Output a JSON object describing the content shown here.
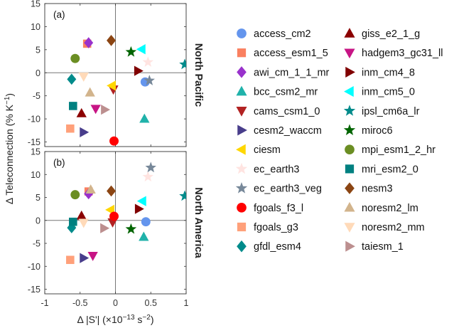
{
  "chart_data": {
    "type": "scatter",
    "xlabel_parts": [
      "Δ |S'| (×10",
      "−13",
      " s",
      "−2",
      ")"
    ],
    "ylabel_parts": [
      "Δ Teleconnection (% K",
      "−1",
      ")"
    ],
    "xlim": [
      -1,
      1
    ],
    "ylim": [
      -16,
      15
    ],
    "xticks": [
      -1,
      -0.5,
      0,
      0.5,
      1
    ],
    "xtick_labels": [
      "-1",
      "-0.5",
      "0",
      "0.5",
      "1"
    ],
    "yticks": [
      -15,
      -10,
      -5,
      0,
      5,
      10,
      15
    ],
    "ytick_labels": [
      "-15",
      "-10",
      "-5",
      "0",
      "5",
      "10",
      "15"
    ],
    "legend_position": "right",
    "panels": [
      {
        "label": "(a)",
        "region": "North Pacific",
        "points": [
          {
            "model": "access_cm2",
            "x": 0.42,
            "y": -2.0
          },
          {
            "model": "access_esm1_5",
            "x": -0.4,
            "y": 6.3
          },
          {
            "model": "awi_cm_1_1_mr",
            "x": -0.38,
            "y": 6.5
          },
          {
            "model": "bcc_csm2_mr",
            "x": 0.41,
            "y": -10.0
          },
          {
            "model": "cams_csm1_0",
            "x": -0.03,
            "y": -3.6
          },
          {
            "model": "cesm2_waccm",
            "x": -0.45,
            "y": -12.9
          },
          {
            "model": "ciesm",
            "x": -0.05,
            "y": -2.8
          },
          {
            "model": "ec_earth3",
            "x": 0.46,
            "y": 2.3
          },
          {
            "model": "ec_earth3_veg",
            "x": 0.48,
            "y": -1.7
          },
          {
            "model": "fgoals_f3_l",
            "x": -0.02,
            "y": -14.8
          },
          {
            "model": "fgoals_g3",
            "x": -0.64,
            "y": -12.1
          },
          {
            "model": "gfdl_esm4",
            "x": -0.62,
            "y": -1.4
          },
          {
            "model": "giss_e2_1_g",
            "x": -0.48,
            "y": -8.8
          },
          {
            "model": "hadgem3_gc31_ll",
            "x": -0.28,
            "y": -7.8
          },
          {
            "model": "inm_cm4_8",
            "x": 0.32,
            "y": 0.4
          },
          {
            "model": "inm_cm5_0",
            "x": 0.37,
            "y": 5.1
          },
          {
            "model": "ipsl_cm6a_lr",
            "x": 0.98,
            "y": 1.8
          },
          {
            "model": "miroc6",
            "x": 0.22,
            "y": 4.5
          },
          {
            "model": "mpi_esm1_2_hr",
            "x": -0.57,
            "y": 3.1
          },
          {
            "model": "mri_esm2_0",
            "x": -0.6,
            "y": -7.2
          },
          {
            "model": "nesm3",
            "x": -0.06,
            "y": 7.0
          },
          {
            "model": "noresm2_lm",
            "x": -0.36,
            "y": -4.3
          },
          {
            "model": "noresm2_mm",
            "x": -0.45,
            "y": -0.8
          },
          {
            "model": "taiesm_1",
            "x": -0.15,
            "y": -8.0
          }
        ]
      },
      {
        "label": "(b)",
        "region": "North America",
        "points": [
          {
            "model": "access_cm2",
            "x": 0.43,
            "y": -0.3
          },
          {
            "model": "access_esm1_5",
            "x": -0.38,
            "y": 6.3
          },
          {
            "model": "awi_cm_1_1_mr",
            "x": -0.38,
            "y": 5.8
          },
          {
            "model": "bcc_csm2_mr",
            "x": 0.4,
            "y": -3.6
          },
          {
            "model": "cams_csm1_0",
            "x": -0.04,
            "y": -0.4
          },
          {
            "model": "cesm2_waccm",
            "x": -0.45,
            "y": -8.2
          },
          {
            "model": "ciesm",
            "x": -0.07,
            "y": 2.3
          },
          {
            "model": "ec_earth3",
            "x": 0.46,
            "y": 9.5
          },
          {
            "model": "ec_earth3_veg",
            "x": 0.5,
            "y": 11.5
          },
          {
            "model": "fgoals_f3_l",
            "x": -0.02,
            "y": 0.9
          },
          {
            "model": "fgoals_g3",
            "x": -0.64,
            "y": -8.6
          },
          {
            "model": "gfdl_esm4",
            "x": -0.62,
            "y": -1.6
          },
          {
            "model": "giss_e2_1_g",
            "x": -0.48,
            "y": 1.0
          },
          {
            "model": "hadgem3_gc31_ll",
            "x": -0.32,
            "y": -7.7
          },
          {
            "model": "inm_cm4_8",
            "x": 0.33,
            "y": 2.5
          },
          {
            "model": "inm_cm5_0",
            "x": 0.38,
            "y": 4.2
          },
          {
            "model": "ipsl_cm6a_lr",
            "x": 0.98,
            "y": 5.3
          },
          {
            "model": "miroc6",
            "x": 0.22,
            "y": -1.9
          },
          {
            "model": "mpi_esm1_2_hr",
            "x": -0.57,
            "y": 5.6
          },
          {
            "model": "mri_esm2_0",
            "x": -0.6,
            "y": -0.3
          },
          {
            "model": "nesm3",
            "x": -0.06,
            "y": 6.4
          },
          {
            "model": "noresm2_lm",
            "x": -0.35,
            "y": 6.7
          },
          {
            "model": "noresm2_mm",
            "x": -0.45,
            "y": -0.5
          },
          {
            "model": "taiesm_1",
            "x": -0.16,
            "y": -1.7
          }
        ]
      }
    ],
    "legend": [
      {
        "name": "access_cm2",
        "marker": "circle",
        "color": "#6495ED"
      },
      {
        "name": "access_esm1_5",
        "marker": "square",
        "color": "#FA8060"
      },
      {
        "name": "awi_cm_1_1_mr",
        "marker": "diamond",
        "color": "#9932CC"
      },
      {
        "name": "bcc_csm2_mr",
        "marker": "triangle-up",
        "color": "#20B2AA"
      },
      {
        "name": "cams_csm1_0",
        "marker": "triangle-down",
        "color": "#B22222"
      },
      {
        "name": "cesm2_waccm",
        "marker": "triangle-right",
        "color": "#483D8B"
      },
      {
        "name": "ciesm",
        "marker": "triangle-left",
        "color": "#FFD700"
      },
      {
        "name": "ec_earth3",
        "marker": "star",
        "color": "#FFE4E1"
      },
      {
        "name": "ec_earth3_veg",
        "marker": "star",
        "color": "#778899"
      },
      {
        "name": "fgoals_f3_l",
        "marker": "circle",
        "color": "#FF0000"
      },
      {
        "name": "fgoals_g3",
        "marker": "square",
        "color": "#FFA07A"
      },
      {
        "name": "gfdl_esm4",
        "marker": "diamond",
        "color": "#008B8B"
      },
      {
        "name": "giss_e2_1_g",
        "marker": "triangle-up",
        "color": "#8B0000"
      },
      {
        "name": "hadgem3_gc31_ll",
        "marker": "triangle-down",
        "color": "#C71585"
      },
      {
        "name": "inm_cm4_8",
        "marker": "triangle-right",
        "color": "#800000"
      },
      {
        "name": "inm_cm5_0",
        "marker": "triangle-left",
        "color": "#00FFFF"
      },
      {
        "name": "ipsl_cm6a_lr",
        "marker": "star",
        "color": "#008B8B"
      },
      {
        "name": "miroc6",
        "marker": "star",
        "color": "#006400"
      },
      {
        "name": "mpi_esm1_2_hr",
        "marker": "circle",
        "color": "#6B8E23"
      },
      {
        "name": "mri_esm2_0",
        "marker": "square",
        "color": "#008080"
      },
      {
        "name": "nesm3",
        "marker": "diamond",
        "color": "#8B4513"
      },
      {
        "name": "noresm2_lm",
        "marker": "triangle-up",
        "color": "#D2B48C"
      },
      {
        "name": "noresm2_mm",
        "marker": "triangle-down",
        "color": "#FFDAB9"
      },
      {
        "name": "taiesm_1",
        "marker": "triangle-right",
        "color": "#BC8F8F"
      }
    ]
  }
}
